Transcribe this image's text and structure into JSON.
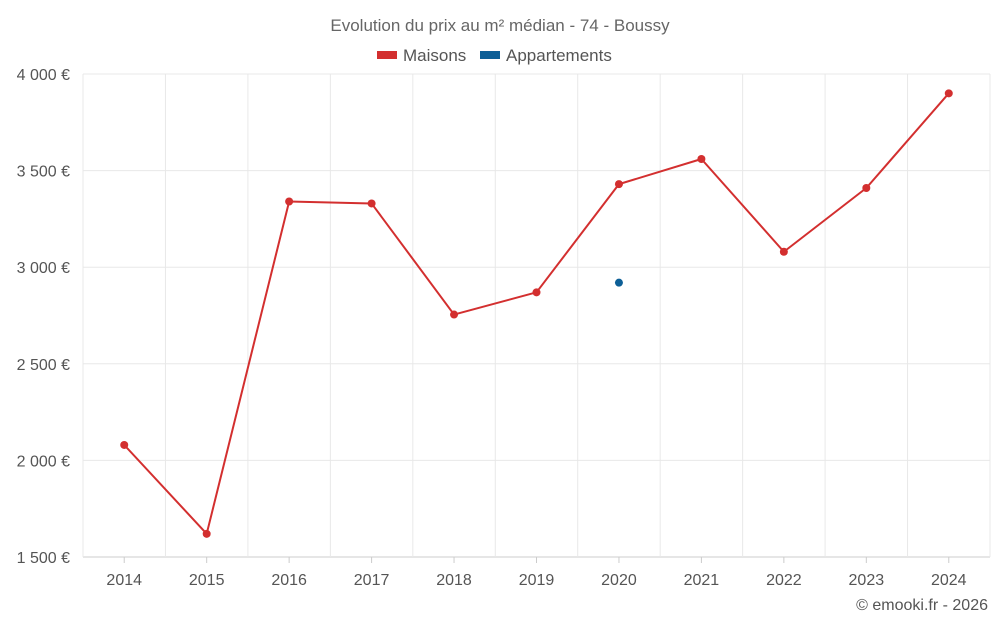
{
  "chart_data": {
    "type": "line",
    "title": "Evolution du prix au m² médian - 74 - Boussy",
    "categories": [
      "2014",
      "2015",
      "2016",
      "2017",
      "2018",
      "2019",
      "2020",
      "2021",
      "2022",
      "2023",
      "2024"
    ],
    "series": [
      {
        "name": "Maisons",
        "color": "#d32f2f",
        "values": [
          2080,
          1620,
          3340,
          3330,
          2755,
          2870,
          3430,
          3560,
          3080,
          3410,
          3900
        ]
      },
      {
        "name": "Appartements",
        "color": "#0d5f97",
        "values": [
          null,
          null,
          null,
          null,
          null,
          null,
          2920,
          null,
          null,
          null,
          null
        ]
      }
    ],
    "ylim": [
      1500,
      4000
    ],
    "yticks": [
      {
        "value": 1500,
        "label": "1 500 €"
      },
      {
        "value": 2000,
        "label": "2 000 €"
      },
      {
        "value": 2500,
        "label": "2 500 €"
      },
      {
        "value": 3000,
        "label": "3 000 €"
      },
      {
        "value": 3500,
        "label": "3 500 €"
      },
      {
        "value": 4000,
        "label": "4 000 €"
      }
    ],
    "xlabel": "",
    "ylabel": "",
    "grid": true,
    "legend": "top-center"
  },
  "credit": "© emooki.fr - 2026"
}
